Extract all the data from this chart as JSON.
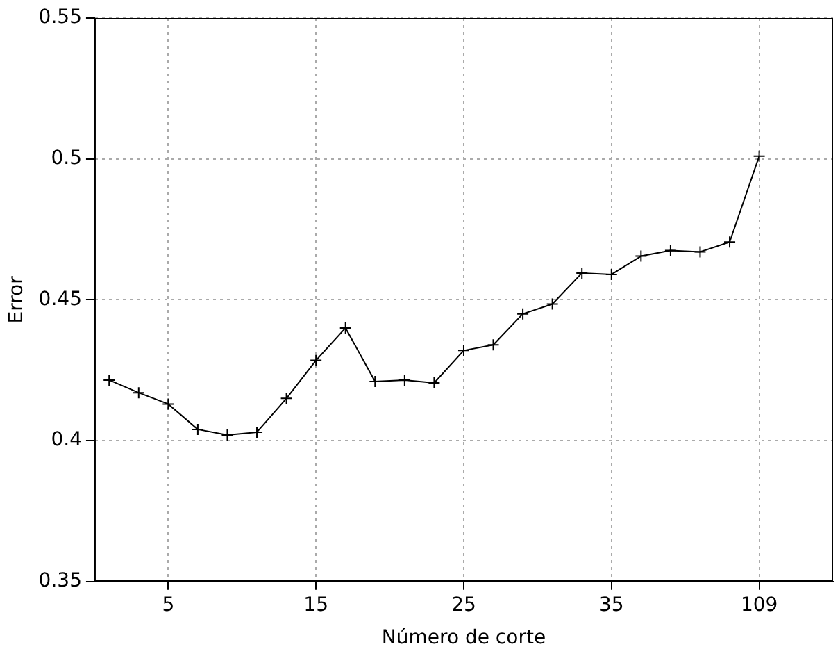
{
  "chart_data": {
    "type": "line",
    "xlabel": "Número de corte",
    "ylabel": "Error",
    "categories": [
      null,
      null,
      "5",
      null,
      null,
      null,
      null,
      "15",
      null,
      null,
      null,
      null,
      "25",
      null,
      null,
      null,
      null,
      "35",
      null,
      null,
      null,
      null,
      "109"
    ],
    "values": [
      0.4215,
      0.417,
      0.413,
      0.404,
      0.402,
      0.403,
      0.415,
      0.4285,
      0.44,
      0.421,
      0.4215,
      0.4205,
      0.432,
      0.434,
      0.445,
      0.4485,
      0.4595,
      0.459,
      0.4655,
      0.4675,
      0.467,
      0.4705,
      0.501
    ],
    "color": "#000000",
    "ylim": [
      0.35,
      0.55
    ],
    "yticks": [
      0.35,
      0.4,
      0.45,
      0.5,
      0.55
    ],
    "grid": true,
    "marker": "cross",
    "line_style": "solid"
  }
}
